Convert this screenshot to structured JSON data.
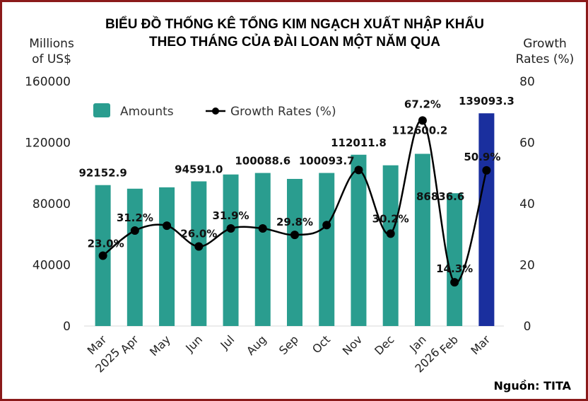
{
  "title_lines": [
    "BIỂU ĐỒ THỐNG KÊ TỔNG KIM NGẠCH XUẤT NHẬP KHẨU",
    "THEO THÁNG CỦA ĐÀI LOAN MỘT NĂM QUA"
  ],
  "source": "Nguồn: TITA",
  "colors": {
    "border": "#8b1a1a",
    "bar": "#2a9d8f",
    "bar_highlight": "#1a2f9e",
    "line": "#000000",
    "grid": "#cccccc"
  },
  "chart_data": {
    "type": "bar+line",
    "categories": [
      "Mar",
      "Apr",
      "May",
      "Jun",
      "Jul",
      "Aug",
      "Sep",
      "Oct",
      "Nov",
      "Dec",
      "Jan",
      "Feb",
      "Mar"
    ],
    "year_labels": [
      {
        "text": "2025",
        "after_index": 0
      },
      {
        "text": "2026",
        "after_index": 10
      }
    ],
    "y_left": {
      "title_lines": [
        "Millions",
        "of US$"
      ],
      "range": [
        0,
        160000
      ],
      "ticks": [
        "0",
        "40000",
        "80000",
        "120000",
        "160000"
      ]
    },
    "y_right": {
      "title_lines": [
        "Growth",
        "Rates (%)"
      ],
      "range": [
        0,
        80
      ],
      "ticks": [
        "0",
        "20",
        "40",
        "60",
        "80"
      ]
    },
    "series": [
      {
        "name": "Amounts",
        "kind": "bar",
        "axis": "left",
        "values": [
          92152.9,
          89800,
          90700,
          94591.0,
          99100,
          100088.6,
          96200,
          100093.7,
          112011.8,
          105100,
          112600.2,
          86836.6,
          139093.3
        ],
        "labels": [
          "92152.9",
          "",
          "",
          "94591.0",
          "",
          "100088.6",
          "",
          "100093.7",
          "112011.8",
          "",
          "112600.2",
          "86836.6",
          "139093.3"
        ],
        "highlight_index": 12
      },
      {
        "name": "Growth Rates (%)",
        "kind": "line",
        "axis": "right",
        "values": [
          23.0,
          31.2,
          32.8,
          26.0,
          31.9,
          31.9,
          29.8,
          33.0,
          51.0,
          30.2,
          67.2,
          14.3,
          50.9
        ],
        "labels": [
          "23.0%",
          "31.2%",
          "",
          "26.0%",
          "31.9%",
          "",
          "29.8%",
          "",
          "",
          "30.2%",
          "67.2%",
          "14.3%",
          "50.9%"
        ]
      }
    ],
    "grid": false,
    "legend": "top-left"
  }
}
